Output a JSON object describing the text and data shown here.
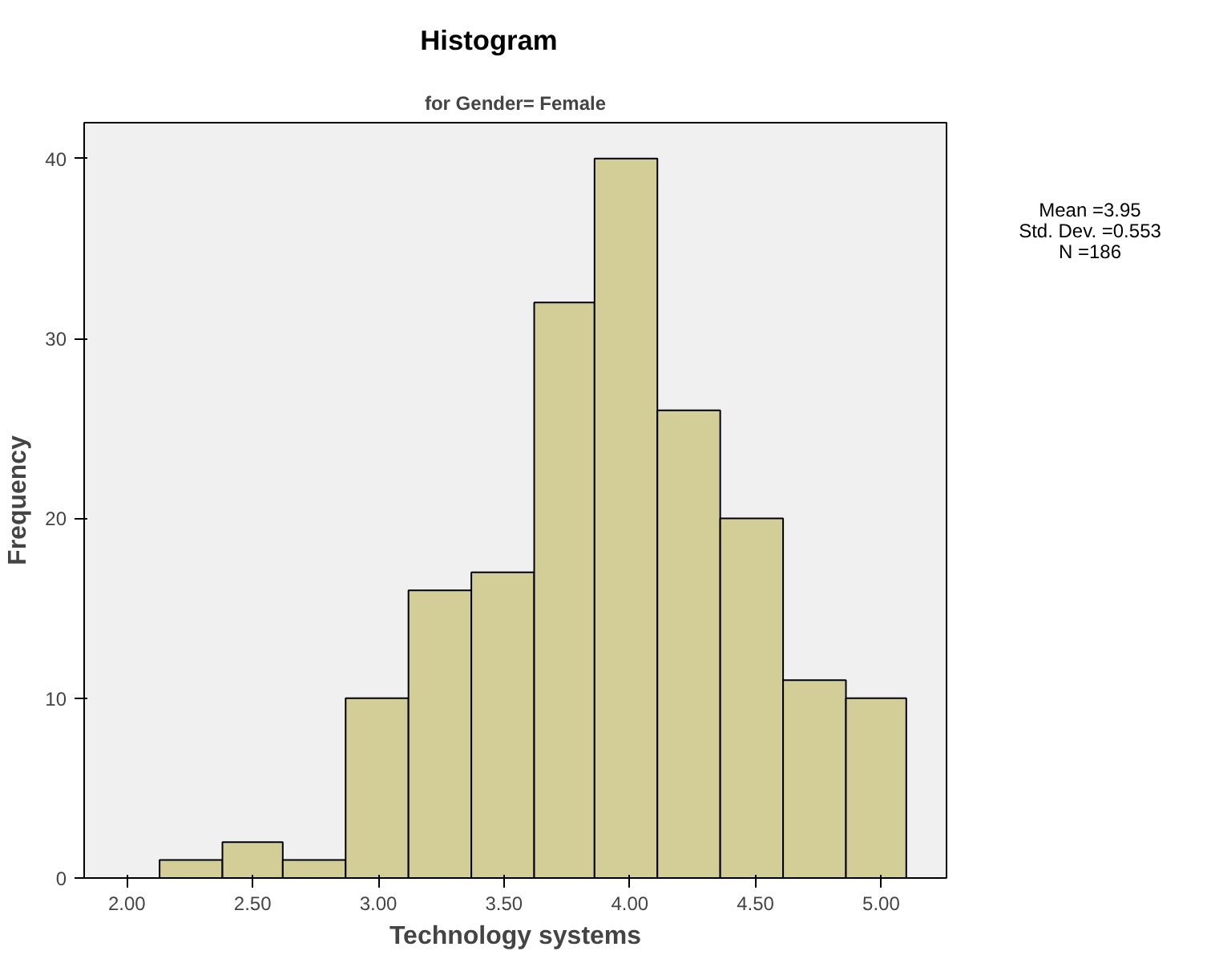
{
  "chart_data": {
    "type": "histogram",
    "title": "Histogram",
    "subtitle": "for Gender= Female",
    "xlabel": "Technology systems",
    "ylabel": "Frequency",
    "bins": [
      2.13,
      2.38,
      2.62,
      2.87,
      3.12,
      3.37,
      3.62,
      3.86,
      4.11,
      4.36,
      4.61,
      4.86,
      5.1
    ],
    "values": [
      1,
      2,
      1,
      10,
      16,
      17,
      32,
      40,
      26,
      20,
      11,
      10
    ],
    "color": "#d3ce97",
    "xlim": [
      1.83,
      5.26
    ],
    "ylim": [
      0,
      42
    ],
    "xticks": [
      {
        "value": 2.0,
        "label": "2.00"
      },
      {
        "value": 2.5,
        "label": "2.50"
      },
      {
        "value": 3.0,
        "label": "3.00"
      },
      {
        "value": 3.5,
        "label": "3.50"
      },
      {
        "value": 4.0,
        "label": "4.00"
      },
      {
        "value": 4.5,
        "label": "4.50"
      },
      {
        "value": 5.0,
        "label": "5.00"
      }
    ],
    "yticks": [
      0,
      10,
      20,
      30,
      40
    ],
    "grid": false,
    "annotations": [
      "Mean =3.95",
      "Std. Dev. =0.553",
      "N =186"
    ]
  }
}
